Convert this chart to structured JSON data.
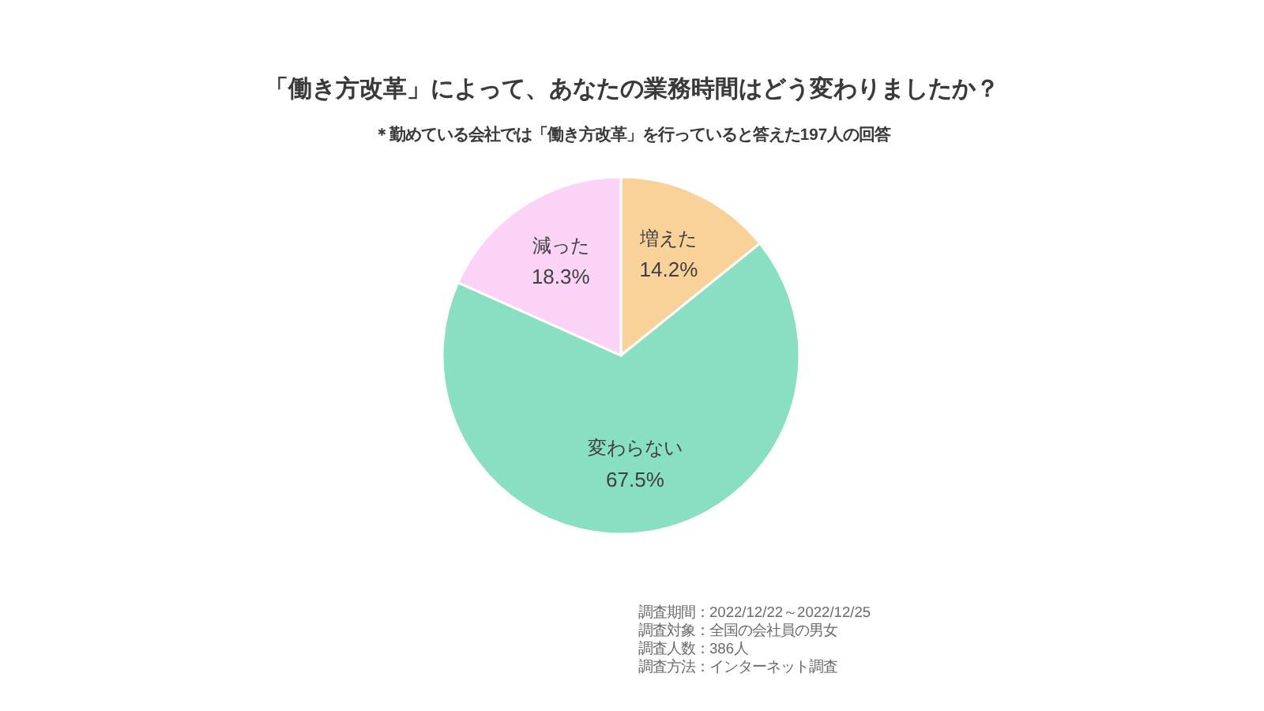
{
  "chart_data": {
    "type": "pie",
    "title": "「働き方改革」によって、あなたの業務時間はどう変わりましたか？",
    "subtitle": "＊勤めている会社では「働き方改革」を行っていると答えた197人の回答",
    "categories": [
      "増えた",
      "変わらない",
      "減った"
    ],
    "values": [
      14.2,
      67.5,
      18.3
    ],
    "colors": [
      "#f9d29a",
      "#88dfc2",
      "#fbd3f6"
    ],
    "value_labels": [
      "14.2%",
      "67.5%",
      "18.3%"
    ],
    "annotations": [
      "調査期間：2022/12/22～2022/12/25",
      "調査対象：全国の会社員の男女",
      "調査人数：386人",
      "調査方法：インターネット調査"
    ]
  }
}
